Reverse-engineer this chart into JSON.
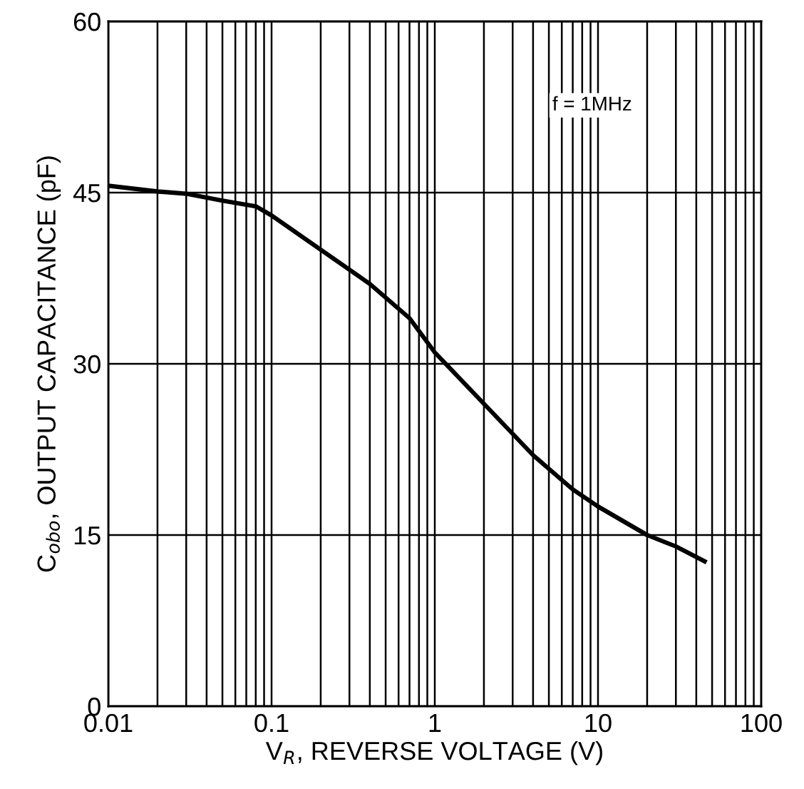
{
  "chart_data": {
    "type": "line",
    "xlabel": "V$_{R}$, REVERSE VOLTAGE (V)",
    "ylabel": "C$_{obo}$, OUTPUT CAPACITANCE (pF)",
    "annotations": [
      "f = 1MHz"
    ],
    "x": [
      0.01,
      0.02,
      0.03,
      0.05,
      0.08,
      0.1,
      0.2,
      0.4,
      0.7,
      1,
      2,
      4,
      7,
      10,
      20,
      30,
      45
    ],
    "series": [
      {
        "color": "#000000",
        "values": [
          45.6,
          45.1,
          44.9,
          44.3,
          43.8,
          43.0,
          40.0,
          37.0,
          34.0,
          31.0,
          26.5,
          22.0,
          19.0,
          17.5,
          15.0,
          14.0,
          12.7
        ]
      }
    ],
    "log": "x",
    "xlim": [
      0.01,
      100
    ],
    "xticks": [
      0.01,
      0.1,
      1,
      10,
      100
    ],
    "ylim": [
      0,
      60
    ],
    "yticks": [
      0,
      15,
      30,
      45,
      60
    ],
    "grid": true,
    "marker": "none",
    "line_style": "solid"
  }
}
